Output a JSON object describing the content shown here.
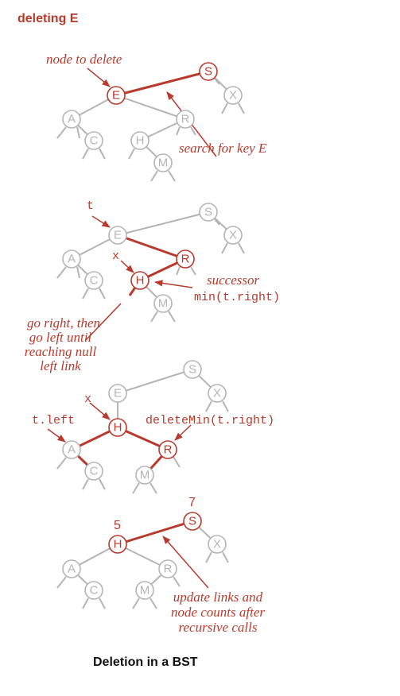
{
  "header": {
    "title": "deleting E"
  },
  "caption": "Deletion in a BST",
  "colors": {
    "accent": "#b83a2c",
    "gray": "#b5b5b5",
    "text": "#111111"
  },
  "panel1": {
    "nodes": {
      "E": "E",
      "S": "S",
      "X": "X",
      "A": "A",
      "C": "C",
      "R": "R",
      "H": "H",
      "M": "M"
    },
    "labels": {
      "node_to_delete": "node to delete",
      "search": "search for key E"
    }
  },
  "panel2": {
    "nodes": {
      "S": "S",
      "X": "X",
      "E": "E",
      "R": "R",
      "A": "A",
      "C": "C",
      "H": "H",
      "M": "M"
    },
    "labels": {
      "t": "t",
      "x": "x",
      "successor": "successor",
      "min_call": "min(t.right)",
      "go_right": [
        "go right, then",
        "go left until",
        "reaching null",
        "left link"
      ]
    }
  },
  "panel3": {
    "nodes": {
      "S": "S",
      "X": "X",
      "E": "E",
      "H": "H",
      "A": "A",
      "R": "R",
      "C": "C",
      "M": "M"
    },
    "labels": {
      "x": "x",
      "t_left": "t.left",
      "delete_min": "deleteMin(t.right)"
    }
  },
  "panel4": {
    "nodes": {
      "S": "S",
      "X": "X",
      "H": "H",
      "A": "A",
      "R": "R",
      "C": "C",
      "M": "M"
    },
    "labels": {
      "count_s": "7",
      "count_h": "5",
      "update": [
        "update links and",
        "node counts after",
        "recursive calls"
      ]
    }
  }
}
